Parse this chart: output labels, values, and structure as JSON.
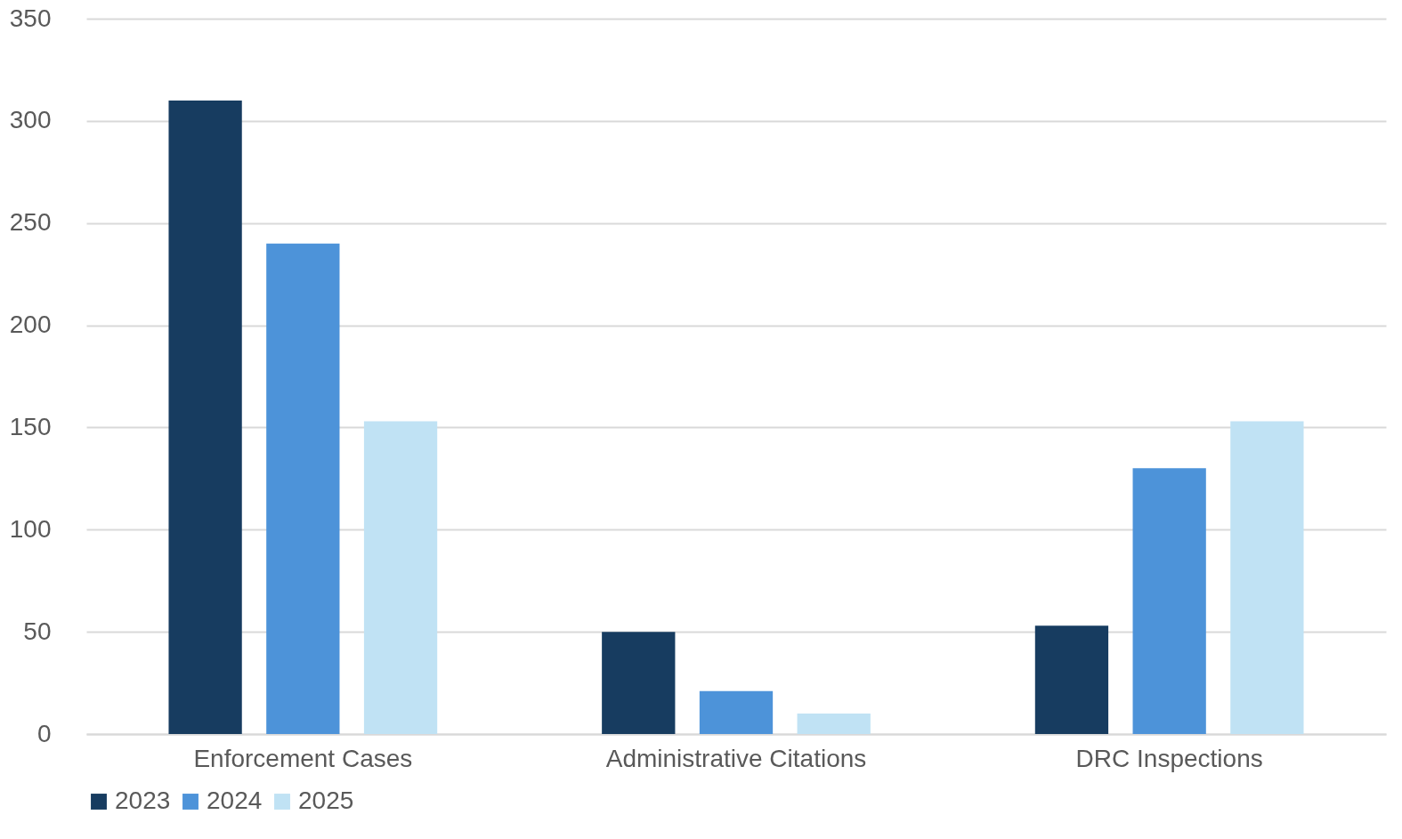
{
  "chart_data": {
    "type": "bar",
    "categories": [
      "Enforcement Cases",
      "Administrative Citations",
      "DRC Inspections"
    ],
    "series": [
      {
        "name": "2023",
        "color": "#173c60",
        "values": [
          310,
          50,
          53
        ]
      },
      {
        "name": "2024",
        "color": "#4d93d9",
        "values": [
          240,
          21,
          130
        ]
      },
      {
        "name": "2025",
        "color": "#c0e2f4",
        "values": [
          153,
          10,
          153
        ]
      }
    ],
    "ylim": [
      0,
      350
    ],
    "yticks": [
      0,
      50,
      100,
      150,
      200,
      250,
      300,
      350
    ],
    "grid": "y",
    "legend": "bottom"
  }
}
